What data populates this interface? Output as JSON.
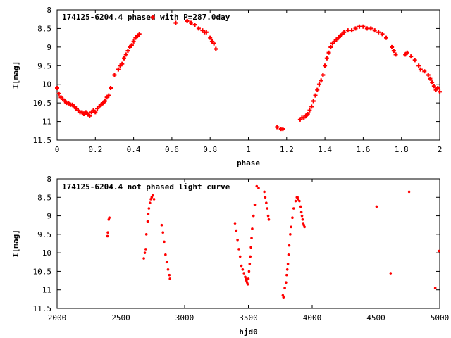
{
  "chart_data": [
    {
      "type": "scatter",
      "title": "174125-6204.4 phased with P=287.0day",
      "xlabel": "phase",
      "ylabel": "I[mag]",
      "xlim": [
        0,
        2
      ],
      "ylim": [
        11.5,
        8
      ],
      "y_inverted": true,
      "x_ticks": [
        "0",
        "0.2",
        "0.4",
        "0.6",
        "0.8",
        "1",
        "1.2",
        "1.4",
        "1.6",
        "1.8",
        "2"
      ],
      "y_ticks": [
        "8",
        "8.5",
        "9",
        "9.5",
        "10",
        "10.5",
        "11",
        "11.5"
      ],
      "marker_color": "#ff0000",
      "marker": "plus",
      "grid": false,
      "series": [
        {
          "x": [
            0.0,
            0.01,
            0.02,
            0.03,
            0.04,
            0.05,
            0.06,
            0.07,
            0.08,
            0.09,
            0.1,
            0.11,
            0.12,
            0.13,
            0.14,
            0.15,
            0.16,
            0.17,
            0.18,
            0.19,
            0.2,
            0.21,
            0.22,
            0.23,
            0.24,
            0.25,
            0.26,
            0.27,
            0.28,
            0.3,
            0.32,
            0.33,
            0.34,
            0.35,
            0.36,
            0.37,
            0.38,
            0.39,
            0.4,
            0.41,
            0.42,
            0.43,
            0.5,
            0.62,
            0.68,
            0.7,
            0.72,
            0.74,
            0.76,
            0.77,
            0.78,
            0.8,
            0.81,
            0.82,
            0.83,
            1.15,
            1.17,
            1.18,
            1.27,
            1.28,
            1.29,
            1.3,
            1.31,
            1.32,
            1.33,
            1.34,
            1.35,
            1.36,
            1.37,
            1.38,
            1.39,
            1.4,
            1.41,
            1.42,
            1.43,
            1.44,
            1.45,
            1.46,
            1.47,
            1.48,
            1.49,
            1.5,
            1.52,
            1.54,
            1.56,
            1.58,
            1.6,
            1.62,
            1.64,
            1.66,
            1.68,
            1.7,
            1.72,
            1.75,
            1.76,
            1.77,
            1.82,
            1.83,
            1.85,
            1.87,
            1.89,
            1.9,
            1.92,
            1.94,
            1.95,
            1.96,
            1.97,
            1.98,
            1.99,
            2.0
          ],
          "y": [
            10.1,
            10.25,
            10.35,
            10.4,
            10.45,
            10.5,
            10.5,
            10.55,
            10.55,
            10.6,
            10.65,
            10.7,
            10.75,
            10.75,
            10.8,
            10.75,
            10.8,
            10.85,
            10.75,
            10.7,
            10.75,
            10.65,
            10.6,
            10.55,
            10.5,
            10.45,
            10.35,
            10.3,
            10.1,
            9.75,
            9.6,
            9.5,
            9.45,
            9.3,
            9.2,
            9.1,
            9.0,
            8.95,
            8.85,
            8.75,
            8.7,
            8.65,
            8.2,
            8.35,
            8.3,
            8.35,
            8.4,
            8.5,
            8.55,
            8.6,
            8.6,
            8.75,
            8.85,
            8.9,
            9.05,
            11.15,
            11.2,
            11.2,
            10.95,
            10.9,
            10.9,
            10.85,
            10.8,
            10.7,
            10.6,
            10.45,
            10.3,
            10.15,
            10.0,
            9.9,
            9.75,
            9.5,
            9.3,
            9.15,
            9.0,
            8.9,
            8.85,
            8.8,
            8.75,
            8.7,
            8.65,
            8.6,
            8.55,
            8.55,
            8.5,
            8.45,
            8.45,
            8.5,
            8.5,
            8.55,
            8.6,
            8.65,
            8.75,
            9.0,
            9.1,
            9.2,
            9.2,
            9.15,
            9.25,
            9.35,
            9.5,
            9.6,
            9.65,
            9.75,
            9.85,
            9.95,
            10.05,
            10.15,
            10.1,
            10.2
          ]
        }
      ]
    },
    {
      "type": "scatter",
      "title": "174125-6204.4 not phased light curve",
      "xlabel": "hjd0",
      "ylabel": "I[mag]",
      "xlim": [
        2000,
        5000
      ],
      "ylim": [
        11.5,
        8
      ],
      "y_inverted": true,
      "x_ticks": [
        "2000",
        "2500",
        "3000",
        "3500",
        "4000",
        "4500",
        "5000"
      ],
      "y_ticks": [
        "8",
        "8.5",
        "9",
        "9.5",
        "10",
        "10.5",
        "11",
        "11.5"
      ],
      "marker_color": "#ff0000",
      "marker": "dot",
      "grid": false,
      "series": [
        {
          "x": [
            2395,
            2398,
            2405,
            2410,
            2680,
            2688,
            2695,
            2700,
            2710,
            2715,
            2720,
            2728,
            2735,
            2742,
            2750,
            2760,
            2820,
            2830,
            2840,
            2850,
            2860,
            2870,
            2880,
            2885,
            3395,
            3405,
            3415,
            3425,
            3435,
            3445,
            3455,
            3465,
            3475,
            3480,
            3485,
            3490,
            3495,
            3500,
            3505,
            3510,
            3515,
            3520,
            3525,
            3530,
            3540,
            3550,
            3565,
            3580,
            3625,
            3632,
            3640,
            3648,
            3655,
            3660,
            3770,
            3775,
            3785,
            3795,
            3800,
            3805,
            3810,
            3815,
            3820,
            3828,
            3835,
            3845,
            3855,
            3870,
            3880,
            3885,
            3890,
            3900,
            3910,
            3915,
            3920,
            3925,
            3930,
            3935,
            3940,
            4505,
            4615,
            4760,
            4965,
            4995
          ],
          "y": [
            9.55,
            9.45,
            9.1,
            9.05,
            10.15,
            10.0,
            9.9,
            9.5,
            9.15,
            8.95,
            8.8,
            8.65,
            8.55,
            8.5,
            8.45,
            8.55,
            9.25,
            9.45,
            9.7,
            10.05,
            10.25,
            10.45,
            10.6,
            10.7,
            9.2,
            9.4,
            9.65,
            9.9,
            10.1,
            10.35,
            10.45,
            10.55,
            10.65,
            10.7,
            10.75,
            10.8,
            10.85,
            10.7,
            10.5,
            10.3,
            10.1,
            9.85,
            9.6,
            9.35,
            9.0,
            8.7,
            8.2,
            8.25,
            8.35,
            8.5,
            8.65,
            8.8,
            9.0,
            9.1,
            11.15,
            11.2,
            10.95,
            10.8,
            10.6,
            10.45,
            10.3,
            10.05,
            9.8,
            9.5,
            9.3,
            9.05,
            8.8,
            8.6,
            8.5,
            8.5,
            8.55,
            8.6,
            8.75,
            8.9,
            9.0,
            9.1,
            9.2,
            9.25,
            9.3,
            8.75,
            10.55,
            8.35,
            10.95,
            9.95
          ]
        }
      ]
    }
  ]
}
